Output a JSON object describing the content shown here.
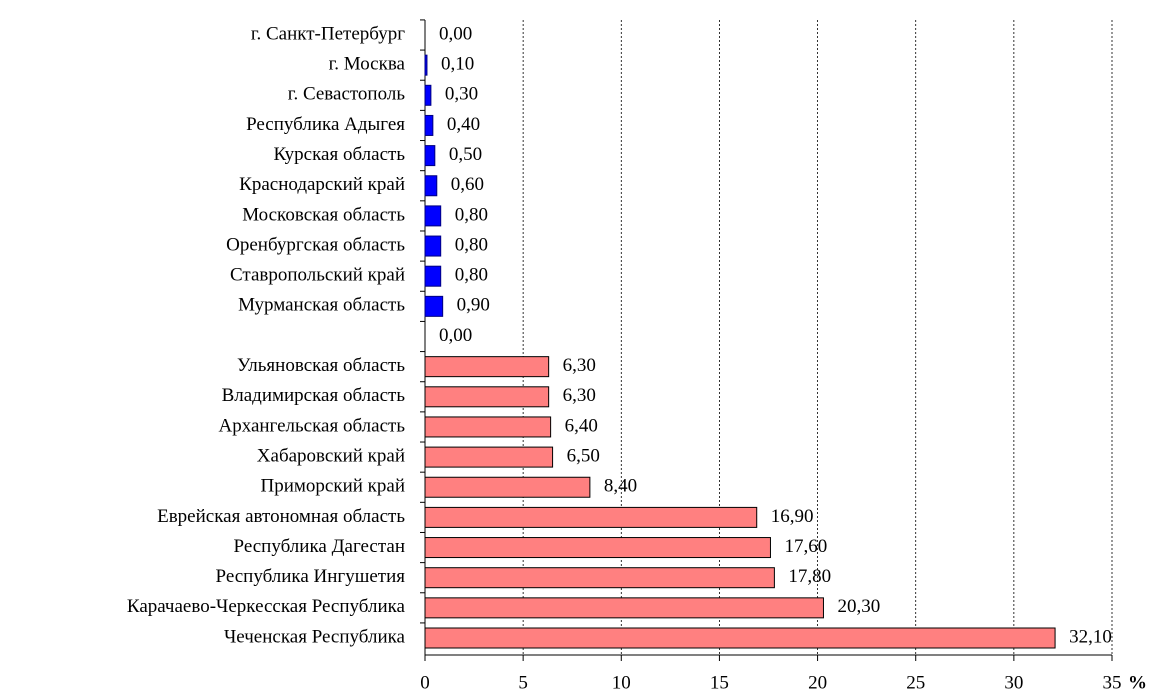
{
  "chart_data": {
    "type": "hbar",
    "categories": [
      "г. Санкт-Петербург",
      "г. Москва",
      "г. Севастополь",
      "Республика Адыгея",
      "Курская область",
      "Краснодарский край",
      "Московская область",
      "Оренбургская область",
      "Ставропольский край",
      "Мурманская область",
      null,
      "Ульяновская область",
      "Владимирская область",
      "Архангельская область",
      "Хабаровский край",
      "Приморский край",
      "Еврейская автономная область",
      "Республика Дагестан",
      "Республика Ингушетия",
      "Карачаево-Черкесская Республика",
      "Чеченская Республика"
    ],
    "values": [
      0,
      0.1,
      0.3,
      0.4,
      0.5,
      0.6,
      0.8,
      0.8,
      0.8,
      0.9,
      0,
      6.3,
      6.3,
      6.4,
      6.5,
      8.4,
      16.9,
      17.6,
      17.8,
      20.3,
      32.1
    ],
    "value_labels": [
      "0,00",
      "0,10",
      "0,30",
      "0,40",
      "0,50",
      "0,60",
      "0,80",
      "0,80",
      "0,80",
      "0,90",
      "0,00",
      "6,30",
      "6,30",
      "6,40",
      "6,50",
      "8,40",
      "16,90",
      "17,60",
      "17,80",
      "20,30",
      "32,10"
    ],
    "colors": [
      "#0000ff",
      "#0000ff",
      "#0000ff",
      "#0000ff",
      "#0000ff",
      "#0000ff",
      "#0000ff",
      "#0000ff",
      "#0000ff",
      "#0000ff",
      "#0000ff",
      "#ff8080",
      "#ff8080",
      "#ff8080",
      "#ff8080",
      "#ff8080",
      "#ff8080",
      "#ff8080",
      "#ff8080",
      "#ff8080",
      "#ff8080"
    ],
    "x_label": "%",
    "xlim": [
      0,
      35
    ],
    "xticks": [
      0,
      5,
      10,
      15,
      20,
      25,
      30,
      35
    ],
    "grid": true
  }
}
